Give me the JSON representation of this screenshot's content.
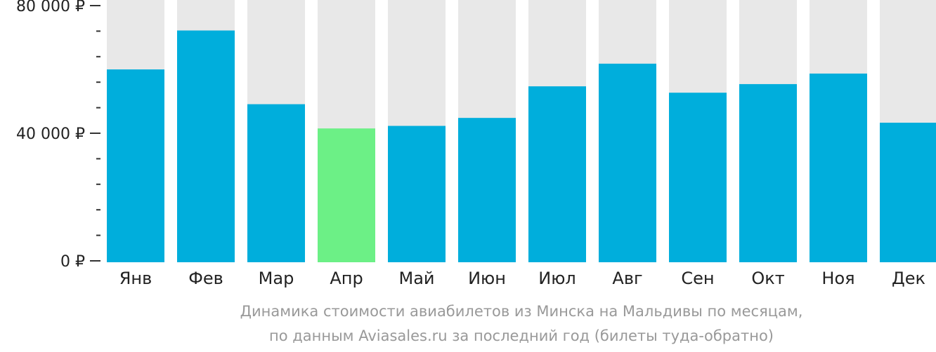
{
  "chart_data": {
    "type": "bar",
    "categories": [
      "Янв",
      "Фев",
      "Мар",
      "Апр",
      "Май",
      "Июн",
      "Июл",
      "Авг",
      "Сен",
      "Окт",
      "Ноя",
      "Дек"
    ],
    "values": [
      60000,
      72200,
      49100,
      41500,
      42300,
      44800,
      54700,
      61800,
      52700,
      55400,
      58700,
      43300
    ],
    "highlight_index": 3,
    "ylim": [
      0,
      80000
    ],
    "ytick_labels": [
      "80 000 ₽",
      "40 000 ₽",
      "0 ₽"
    ],
    "ytick_values": [
      80000,
      40000,
      0
    ],
    "minor_tick_step": 8000,
    "grid": false,
    "colors": {
      "bar": "#00AEDC",
      "highlight": "#6CF086",
      "background_bar": "#E8E8E8",
      "axis": "#333333",
      "tick_label": "#222222",
      "caption": "#999999"
    }
  },
  "caption": {
    "line1": "Динамика стоимости авиабилетов из Минска на Мальдивы по месяцам,",
    "line2": "по данным Aviasales.ru за последний год (билеты туда-обратно)"
  }
}
